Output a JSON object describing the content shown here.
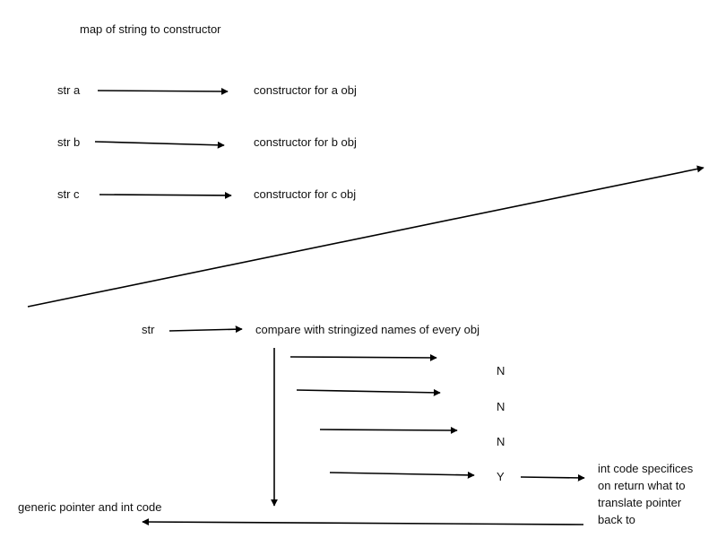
{
  "title": "map of string to constructor",
  "map_entries": [
    {
      "key": "str a",
      "value": "constructor for a obj"
    },
    {
      "key": "str b",
      "value": "constructor for b obj"
    },
    {
      "key": "str c",
      "value": "constructor for c obj"
    }
  ],
  "lookup": {
    "input": "str",
    "process": "compare with stringized names of every obj",
    "results": [
      "N",
      "N",
      "N",
      "Y"
    ],
    "match_output_lines": [
      "int code specifices",
      "on return what to",
      "translate pointer",
      "back to"
    ],
    "final_output": "generic pointer and int code"
  },
  "colors": {
    "stroke": "#000000",
    "text": "#111111",
    "background": "#ffffff"
  }
}
